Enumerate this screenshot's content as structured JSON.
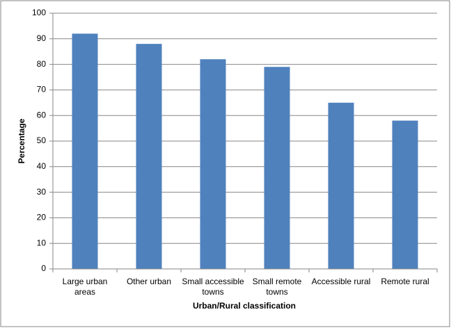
{
  "chart_data": {
    "type": "bar",
    "x_label": "Urban/Rural classification",
    "y_label": "Percentage",
    "categories": [
      "Large urban areas",
      "Other urban",
      "Small accessible towns",
      "Small remote towns",
      "Accessible rural",
      "Remote rural"
    ],
    "values": [
      92,
      88,
      82,
      79,
      65,
      58
    ],
    "color": "#4f81bd",
    "ylim": [
      0,
      100
    ],
    "yticks": [
      0,
      10,
      20,
      30,
      40,
      50,
      60,
      70,
      80,
      90,
      100
    ],
    "grid": true
  }
}
